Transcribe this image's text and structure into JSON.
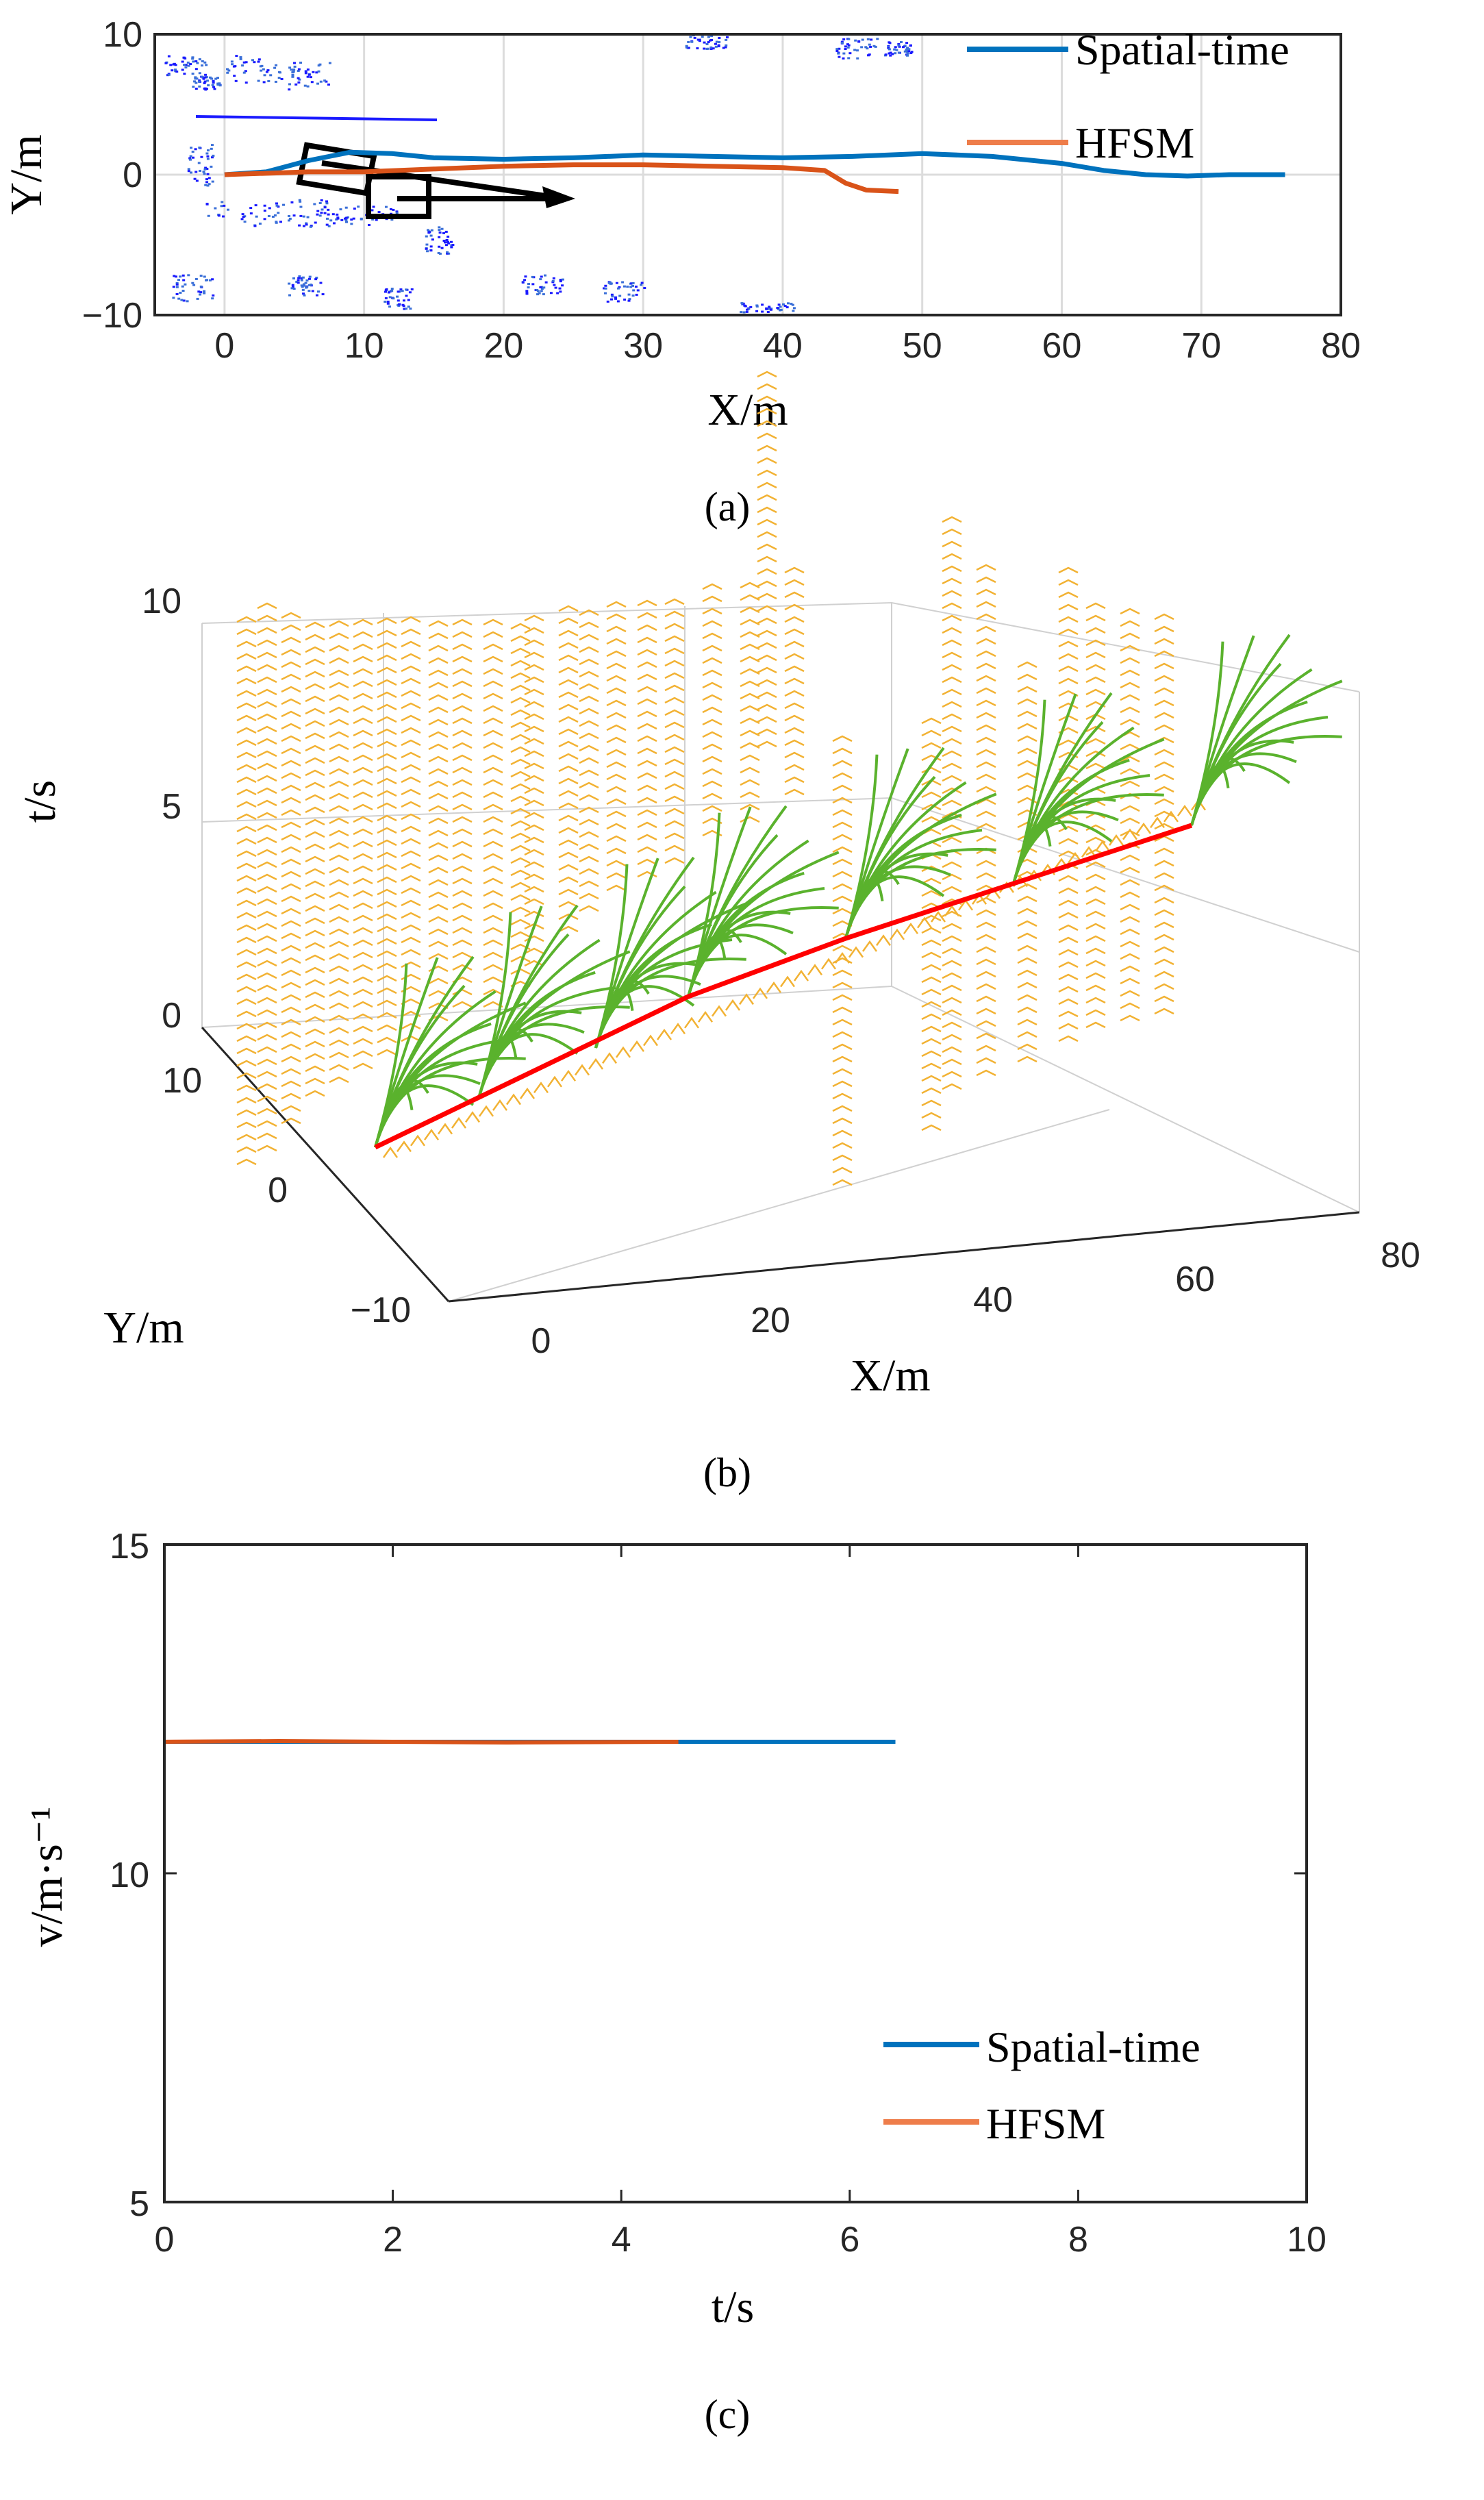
{
  "chart_data": [
    {
      "type": "line",
      "panel": "a",
      "caption": "(a)",
      "xlabel": "X/m",
      "ylabel": "Y/m",
      "xlim": [
        -5,
        80
      ],
      "ylim": [
        -10,
        10
      ],
      "xticks": [
        0,
        10,
        20,
        30,
        40,
        50,
        60,
        70,
        80
      ],
      "yticks": [
        -10,
        0,
        10
      ],
      "grid": true,
      "legend": "top-right",
      "series": [
        {
          "name": "Spatial-time",
          "color": "#0072BD",
          "x": [
            0,
            3,
            6,
            9,
            12,
            15,
            20,
            25,
            30,
            35,
            40,
            45,
            50,
            55,
            60,
            63,
            66,
            69,
            72,
            76
          ],
          "y": [
            0,
            0.2,
            1.0,
            1.6,
            1.5,
            1.2,
            1.1,
            1.2,
            1.4,
            1.3,
            1.2,
            1.3,
            1.5,
            1.3,
            0.8,
            0.3,
            0.0,
            -0.1,
            0.0,
            0.0
          ]
        },
        {
          "name": "HFSM",
          "color": "#D95319",
          "x": [
            0,
            3,
            6,
            10,
            15,
            20,
            25,
            30,
            35,
            40,
            43,
            44.5,
            46,
            48.3
          ],
          "y": [
            0,
            0.1,
            0.2,
            0.2,
            0.4,
            0.6,
            0.7,
            0.7,
            0.6,
            0.5,
            0.3,
            -0.6,
            -1.1,
            -1.2
          ]
        }
      ]
    },
    {
      "type": "line",
      "panel": "b",
      "caption": "(b)",
      "xlabel": "X/m",
      "ylabel_y": "Y/m",
      "zlabel": "t/s",
      "xticks": [
        "0",
        "20",
        "40",
        "60",
        "80"
      ],
      "yticks": [
        "10",
        "0",
        "−10"
      ],
      "zticks": [
        "10",
        "5",
        "0"
      ],
      "note": "3D spatio-temporal sampling: orange obstacle occupancy, green candidate trajectories, red selected path"
    },
    {
      "type": "line",
      "panel": "c",
      "caption": "(c)",
      "xlabel": "t/s",
      "ylabel": "v/m·s⁻¹",
      "xlim": [
        0,
        10
      ],
      "ylim": [
        5,
        15
      ],
      "xticks": [
        0,
        2,
        4,
        6,
        8,
        10
      ],
      "yticks": [
        5,
        10,
        15
      ],
      "grid": false,
      "legend": "bottom-right",
      "series": [
        {
          "name": "Spatial-time",
          "color": "#0072BD",
          "x": [
            0,
            6.4
          ],
          "y": [
            12,
            12
          ]
        },
        {
          "name": "HFSM",
          "color": "#D95319",
          "x": [
            0,
            1,
            2,
            3,
            4.5
          ],
          "y": [
            12.0,
            12.01,
            12.0,
            11.99,
            12.0
          ]
        }
      ]
    }
  ]
}
